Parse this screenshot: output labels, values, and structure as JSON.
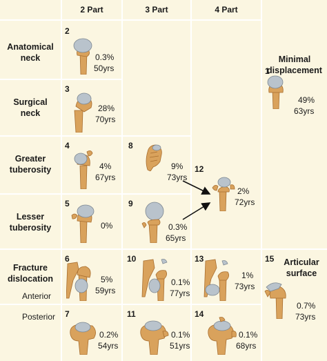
{
  "headers": {
    "two_part": "2 Part",
    "three_part": "3 Part",
    "four_part": "4 Part"
  },
  "rows": {
    "anatomical_neck": "Anatomical\nneck",
    "surgical_neck": "Surgical\nneck",
    "greater_tuberosity": "Greater\ntuberosity",
    "lesser_tuberosity": "Lesser\ntuberosity",
    "fracture_dislocation": "Fracture\ndislocation",
    "anterior": "Anterior",
    "posterior": "Posterior"
  },
  "minimal_displacement": {
    "label": "Minimal\ndisplacement",
    "number": "1",
    "pct": "49%",
    "age": "63yrs"
  },
  "articular_surface": {
    "label": "Articular\nsurface",
    "number": "15",
    "pct": "0.7%",
    "age": "73yrs"
  },
  "cells": {
    "c2": {
      "number": "2",
      "pct": "0.3%",
      "age": "50yrs"
    },
    "c3": {
      "number": "3",
      "pct": "28%",
      "age": "70yrs"
    },
    "c4": {
      "number": "4",
      "pct": "4%",
      "age": "67yrs"
    },
    "c5": {
      "number": "5",
      "pct": "0%",
      "age": ""
    },
    "c6": {
      "number": "6",
      "pct": "5%",
      "age": "59yrs"
    },
    "c7": {
      "number": "7",
      "pct": "0.2%",
      "age": "54yrs"
    },
    "c8": {
      "number": "8",
      "pct": "9%",
      "age": "73yrs"
    },
    "c9": {
      "number": "9",
      "pct": "0.3%",
      "age": "65yrs"
    },
    "c10": {
      "number": "10",
      "pct": "0.1%",
      "age": "77yrs"
    },
    "c11": {
      "number": "11",
      "pct": "0.1%",
      "age": "51yrs"
    },
    "c12": {
      "number": "12",
      "pct": "2%",
      "age": "72yrs"
    },
    "c13": {
      "number": "13",
      "pct": "1%",
      "age": "73yrs"
    },
    "c14": {
      "number": "14",
      "pct": "0.1%",
      "age": "68yrs"
    }
  },
  "colors": {
    "cell_bg": "#fbf6e1",
    "bone": "#d9a25c",
    "bone_dark": "#a86e2f",
    "cartilage": "#b9c3cc"
  }
}
